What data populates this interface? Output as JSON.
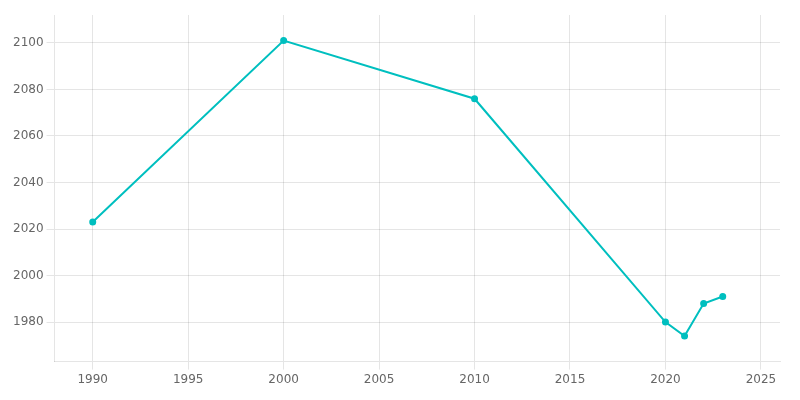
{
  "chart_data": {
    "type": "line",
    "x": [
      1990,
      2000,
      2010,
      2020,
      2021,
      2022,
      2023
    ],
    "values": [
      2023,
      2101,
      2076,
      1980,
      1974,
      1988,
      1991
    ],
    "color": "#00BFBF",
    "marker": "circle",
    "xlim": [
      1988,
      2026
    ],
    "ylim": [
      1963,
      2112
    ],
    "xticks": [
      1990,
      1995,
      2000,
      2005,
      2010,
      2015,
      2020,
      2025
    ],
    "yticks": [
      1980,
      2000,
      2020,
      2040,
      2060,
      2080,
      2100
    ],
    "grid": true
  }
}
